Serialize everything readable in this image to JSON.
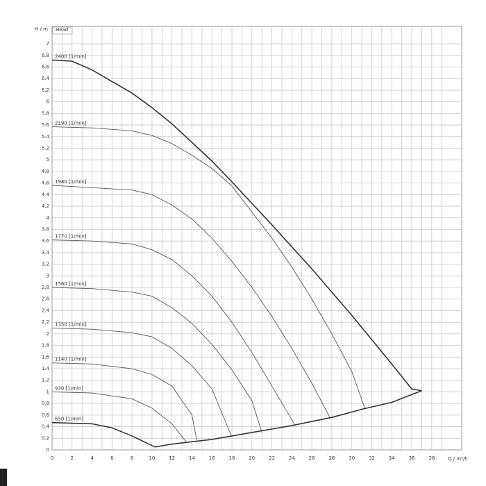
{
  "chart_data": {
    "type": "line",
    "y_label": "H / m",
    "x_label": "Q / m³/h",
    "panel_label": "Head",
    "xlim": [
      0,
      41
    ],
    "ylim": [
      0,
      7.3
    ],
    "xticks": [
      0,
      2,
      4,
      6,
      8,
      10,
      12,
      14,
      16,
      18,
      20,
      22,
      24,
      26,
      28,
      30,
      32,
      34,
      36,
      38
    ],
    "xminorticks": [
      1,
      3,
      5,
      7,
      9,
      11,
      13,
      15,
      17,
      19,
      21,
      23,
      25,
      27,
      29,
      31,
      33,
      35,
      37,
      39
    ],
    "yticks": [
      0,
      0.2,
      0.4,
      0.6,
      0.8,
      1,
      1.2,
      1.4,
      1.6,
      1.8,
      2,
      2.2,
      2.4,
      2.6,
      2.8,
      3,
      3.2,
      3.4,
      3.6,
      3.8,
      4,
      4.2,
      4.4,
      4.6,
      4.8,
      5,
      5.2,
      5.4,
      5.6,
      5.8,
      6,
      6.2,
      6.4,
      6.6,
      6.8,
      7
    ],
    "grid": true,
    "series": [
      {
        "name": "2400 [1/min]",
        "color": "#333333",
        "width": 1.6,
        "x": [
          0,
          2,
          4,
          6,
          8,
          10,
          12,
          14,
          16,
          18,
          20,
          22,
          24,
          26,
          28,
          30,
          32,
          34,
          36,
          37
        ],
        "values": [
          6.72,
          6.7,
          6.55,
          6.35,
          6.15,
          5.9,
          5.62,
          5.3,
          4.98,
          4.62,
          4.25,
          3.88,
          3.5,
          3.12,
          2.72,
          2.32,
          1.9,
          1.48,
          1.05,
          1.02
        ]
      },
      {
        "color": "#333333",
        "width": 1.6,
        "x": [
          37,
          34,
          31,
          28,
          24,
          20,
          16,
          12,
          10.3
        ],
        "values": [
          1.02,
          0.82,
          0.7,
          0.56,
          0.42,
          0.3,
          0.18,
          0.1,
          0.05
        ]
      },
      {
        "name": "2190 [1/min]",
        "color": "#555555",
        "width": 0.9,
        "x": [
          0,
          4,
          8,
          10,
          12,
          14,
          16,
          18,
          20,
          22,
          24,
          26,
          28,
          30,
          31.3
        ],
        "values": [
          5.57,
          5.55,
          5.5,
          5.42,
          5.28,
          5.08,
          4.85,
          4.55,
          4.1,
          3.65,
          3.15,
          2.6,
          2.0,
          1.35,
          0.72
        ]
      },
      {
        "name": "1980 [1/min]",
        "color": "#555555",
        "width": 0.9,
        "x": [
          0,
          4,
          8,
          10,
          12,
          14,
          16,
          18,
          20,
          22,
          24,
          26,
          27.8
        ],
        "values": [
          4.56,
          4.52,
          4.48,
          4.4,
          4.22,
          3.98,
          3.65,
          3.25,
          2.8,
          2.3,
          1.75,
          1.15,
          0.56
        ]
      },
      {
        "name": "1770 [1/min]",
        "color": "#555555",
        "width": 0.9,
        "x": [
          0,
          4,
          8,
          10,
          12,
          14,
          16,
          18,
          20,
          22,
          24.3
        ],
        "values": [
          3.62,
          3.6,
          3.55,
          3.45,
          3.28,
          3.0,
          2.65,
          2.2,
          1.68,
          1.1,
          0.43
        ]
      },
      {
        "name": "1560 [1/min]",
        "color": "#555555",
        "width": 0.9,
        "x": [
          0,
          4,
          8,
          10,
          12,
          14,
          16,
          18,
          20,
          21
        ],
        "values": [
          2.8,
          2.78,
          2.72,
          2.65,
          2.45,
          2.18,
          1.82,
          1.38,
          0.85,
          0.3
        ]
      },
      {
        "name": "1350 [1/min]",
        "color": "#555555",
        "width": 0.9,
        "x": [
          0,
          4,
          8,
          10,
          12,
          14,
          16,
          18
        ],
        "values": [
          2.1,
          2.08,
          2.02,
          1.95,
          1.75,
          1.45,
          1.05,
          0.22
        ]
      },
      {
        "name": "1140 [1/min]",
        "color": "#555555",
        "width": 0.9,
        "x": [
          0,
          4,
          8,
          10,
          12,
          14,
          14.5
        ],
        "values": [
          1.5,
          1.48,
          1.4,
          1.3,
          1.1,
          0.6,
          0.15
        ]
      },
      {
        "name": "930 [1/min]",
        "color": "#555555",
        "width": 0.9,
        "x": [
          0,
          4,
          8,
          10,
          12,
          13.5
        ],
        "values": [
          1.0,
          0.98,
          0.88,
          0.72,
          0.45,
          0.12
        ]
      },
      {
        "name": "650 [1/min]",
        "color": "#333333",
        "width": 1.6,
        "x": [
          0,
          4,
          6,
          8,
          10.3
        ],
        "values": [
          0.47,
          0.45,
          0.38,
          0.24,
          0.05
        ]
      }
    ]
  }
}
